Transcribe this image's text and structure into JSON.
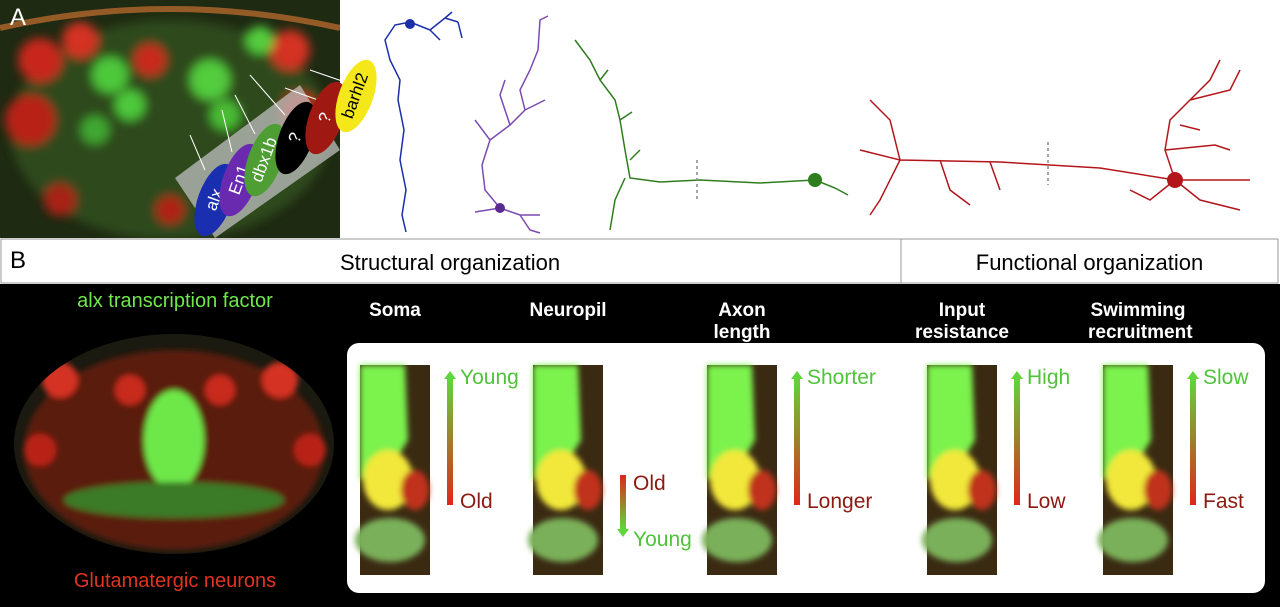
{
  "panel_a": {
    "label": "A",
    "genes": [
      "alx",
      "En1",
      "dbx1b",
      "?",
      "?",
      "barhl2"
    ]
  },
  "panel_b": {
    "label": "B",
    "structural_header": "Structural organization",
    "functional_header": "Functional organization",
    "image_labels": {
      "top": "alx transcription factor",
      "bottom": "Glutamatergic neurons"
    },
    "columns": [
      {
        "title": "Soma",
        "top": "Young",
        "bottom": "Old"
      },
      {
        "title": "Neuropil",
        "top": "Old",
        "bottom": "Young"
      },
      {
        "title": "Axon length",
        "top": "Shorter",
        "bottom": "Longer"
      },
      {
        "title": "Input resistance",
        "top": "High",
        "bottom": "Low"
      },
      {
        "title": "Swimming recruitment",
        "top": "Slow",
        "bottom": "Fast"
      }
    ]
  }
}
